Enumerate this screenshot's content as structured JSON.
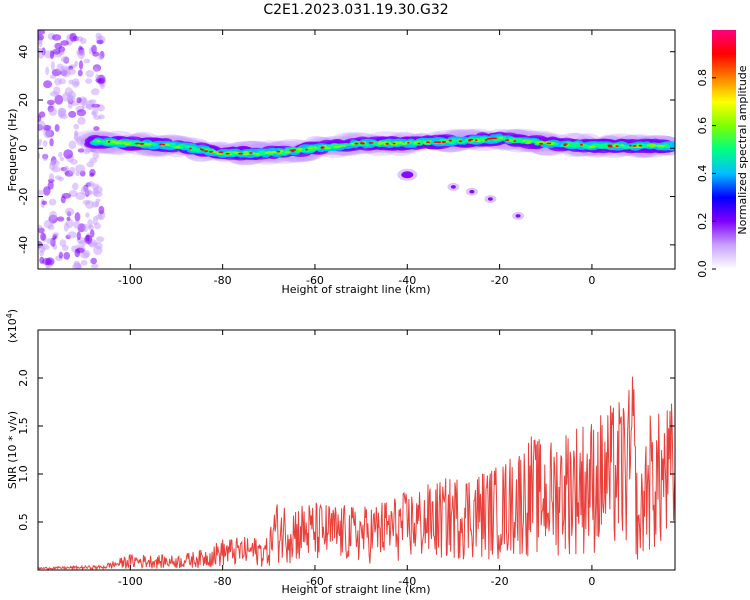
{
  "title": "C2E1.2023.031.19.30.G32",
  "chart_data": [
    {
      "type": "heatmap",
      "xlabel": "Height of straight line (km)",
      "ylabel": "Frequency (Hz)",
      "xlim": [
        -120,
        18
      ],
      "ylim": [
        -50,
        49
      ],
      "xticks": [
        -100,
        -80,
        -60,
        -40,
        -20,
        0
      ],
      "yticks": [
        -40,
        -20,
        0,
        20,
        40
      ],
      "colorbar": {
        "label": "Normalized spectral amplitude",
        "range": [
          0,
          1
        ],
        "ticks": [
          "0.0",
          "0.2",
          "0.4",
          "0.6",
          "0.8"
        ],
        "colors": [
          "#ffffff",
          "#c8a0ff",
          "#8000ff",
          "#0000ff",
          "#00c0ff",
          "#00ff80",
          "#80ff00",
          "#ffff00",
          "#ff8000",
          "#ff0000",
          "#ff0080"
        ]
      },
      "ridge": {
        "x": [
          -119,
          -110,
          -100,
          -90,
          -80,
          -70,
          -60,
          -50,
          -40,
          -30,
          -20,
          -10,
          0,
          10,
          18
        ],
        "freq": [
          3,
          3,
          2,
          1,
          -2,
          -2,
          0,
          2,
          2,
          3,
          4,
          2,
          1,
          1,
          1
        ]
      },
      "secondary_echo": {
        "x": [
          -40,
          -30,
          -26,
          -22,
          -16
        ],
        "freq": [
          -11,
          -16,
          -18,
          -21,
          -28
        ]
      }
    },
    {
      "type": "line",
      "xlabel": "Height of straight line (km)",
      "ylabel": "SNR (10 * v/v)",
      "yscale_label": "(x10",
      "yscale_exp": "4",
      "yscale_close": ")",
      "xlim": [
        -120,
        18
      ],
      "ylim": [
        0,
        2.5
      ],
      "xticks": [
        -100,
        -80,
        -60,
        -40,
        -20,
        0
      ],
      "yticks": [
        "0.5",
        "1.0",
        "1.5",
        "2.0"
      ],
      "line_color": "#e8403a",
      "envelope": {
        "x": [
          -120,
          -106,
          -100,
          -90,
          -84,
          -80,
          -74,
          -70,
          -69,
          -60,
          -50,
          -40,
          -30,
          -20,
          -13,
          -10,
          -5,
          0,
          5,
          8,
          9,
          10,
          12,
          15,
          18
        ],
        "y": [
          0.02,
          0.05,
          0.15,
          0.14,
          0.2,
          0.3,
          0.32,
          0.3,
          0.65,
          0.65,
          0.6,
          0.75,
          0.9,
          1.0,
          1.3,
          1.2,
          1.4,
          1.45,
          1.6,
          1.7,
          2.0,
          0.6,
          1.5,
          1.5,
          1.65
        ]
      }
    }
  ]
}
